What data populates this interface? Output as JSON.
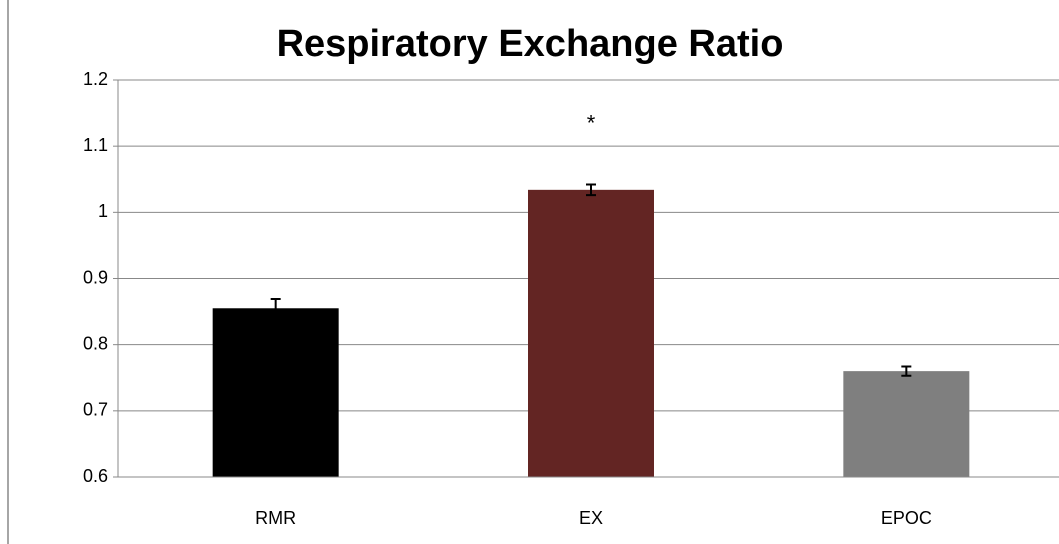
{
  "chart_data": {
    "type": "bar",
    "title": "Respiratory Exchange Ratio",
    "categories": [
      "RMR",
      "EX",
      "EPOC"
    ],
    "values": [
      0.855,
      1.034,
      0.76
    ],
    "errors": [
      0.014,
      0.008,
      0.007
    ],
    "colors": [
      "#000000",
      "#632523",
      "#7f7f7f"
    ],
    "ylim": [
      0.6,
      1.2
    ],
    "yticks": [
      0.6,
      0.7,
      0.8,
      0.9,
      1,
      1.1,
      1.2
    ],
    "grid": true,
    "annotations": [
      {
        "text": "*",
        "x": "EX"
      }
    ]
  }
}
